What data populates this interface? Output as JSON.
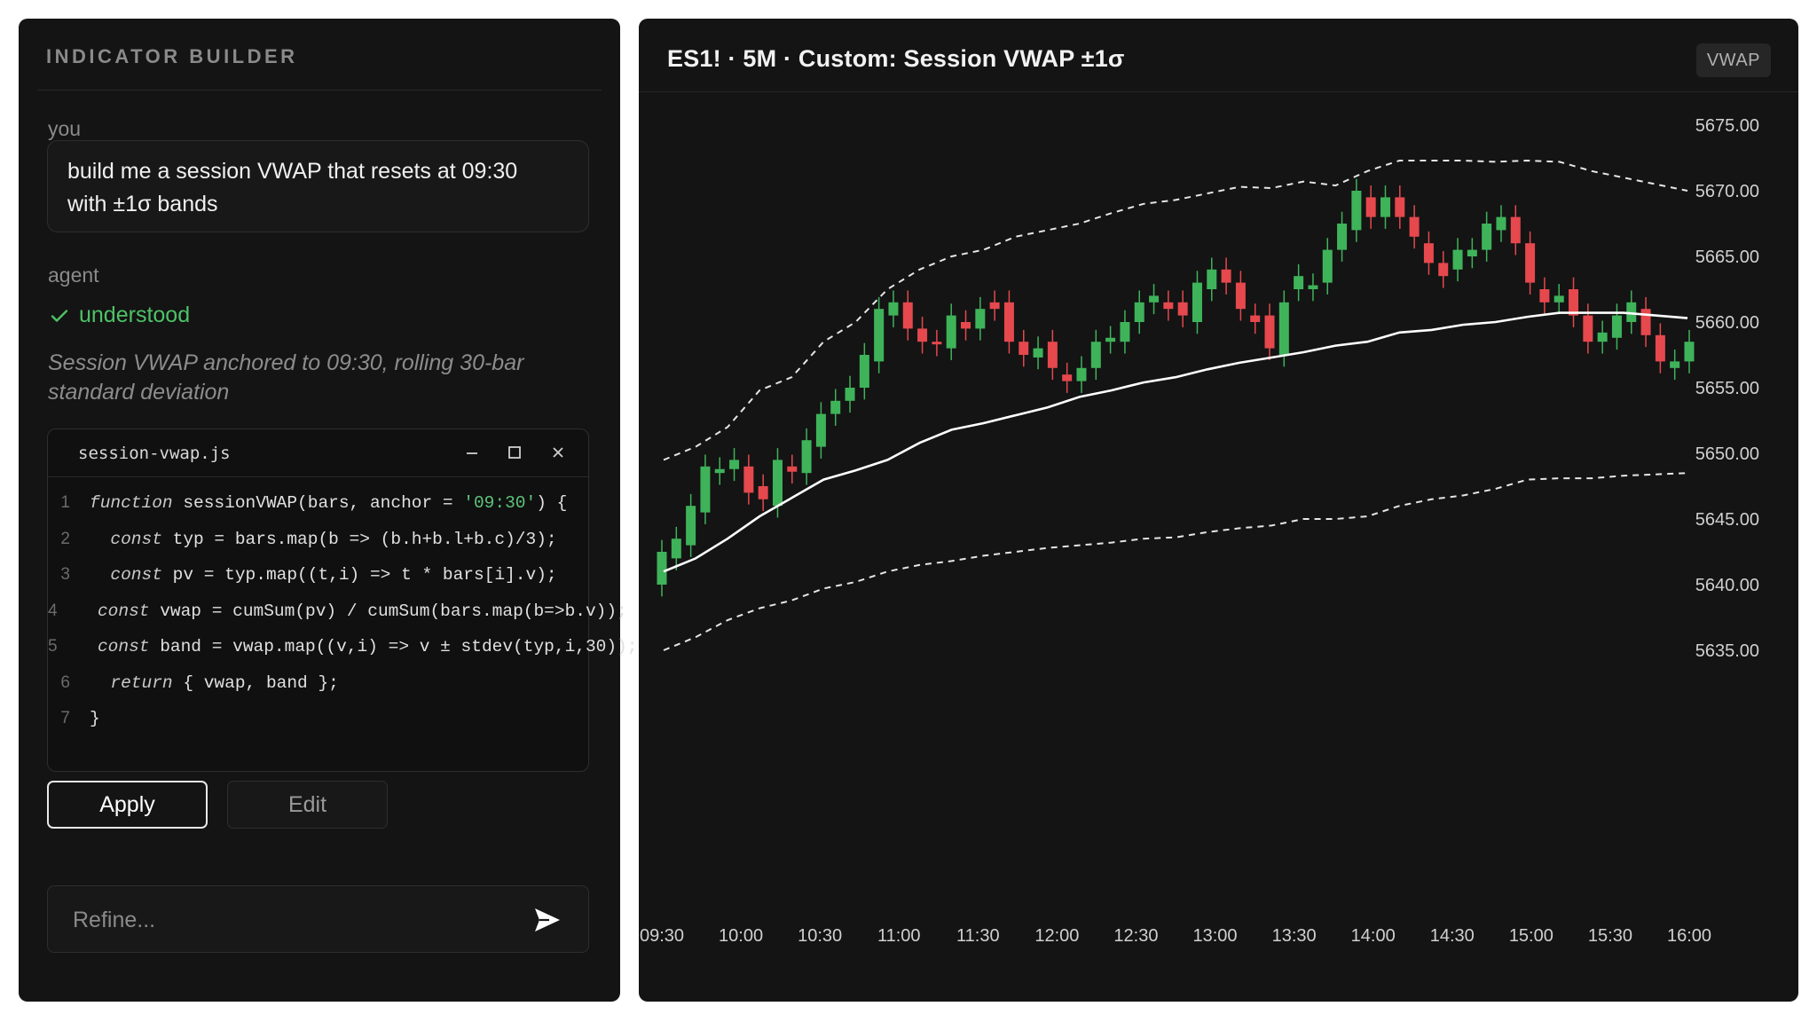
{
  "builder": {
    "title": "INDICATOR BUILDER",
    "user_role": "you",
    "user_message_line1": "build me a session VWAP that resets at 09:30",
    "user_message_line2": "with ±1σ bands",
    "agent_role": "agent",
    "status": "understood",
    "description": "Session VWAP anchored to 09:30, rolling 30-bar standard deviation",
    "code_file": "session-vwap.js",
    "code_lines": [
      {
        "n": "1",
        "parts": [
          [
            "kw",
            "function"
          ],
          [
            "t",
            " sessionVWAP(bars, anchor = "
          ],
          [
            "str",
            "'09:30'"
          ],
          [
            "t",
            ") {"
          ]
        ]
      },
      {
        "n": "2",
        "parts": [
          [
            "t",
            "  "
          ],
          [
            "kw",
            "const"
          ],
          [
            "t",
            " typ = bars.map(b => (b.h+b.l+b.c)/3);"
          ]
        ]
      },
      {
        "n": "3",
        "parts": [
          [
            "t",
            "  "
          ],
          [
            "kw",
            "const"
          ],
          [
            "t",
            " pv = typ.map((t,i) => t * bars[i].v);"
          ]
        ]
      },
      {
        "n": "4",
        "parts": [
          [
            "t",
            "  "
          ],
          [
            "kw",
            "const"
          ],
          [
            "t",
            " vwap = cumSum(pv) / cumSum(bars.map(b=>b.v));"
          ]
        ]
      },
      {
        "n": "5",
        "parts": [
          [
            "t",
            "  "
          ],
          [
            "kw",
            "const"
          ],
          [
            "t",
            " band = vwap.map((v,i) => v ± stdev(typ,i,30));"
          ]
        ]
      },
      {
        "n": "6",
        "parts": [
          [
            "t",
            "  "
          ],
          [
            "kw",
            "return"
          ],
          [
            "t",
            " { vwap, band };"
          ]
        ]
      },
      {
        "n": "7",
        "parts": [
          [
            "t",
            "}"
          ]
        ]
      }
    ],
    "apply_label": "Apply",
    "edit_label": "Edit",
    "refine_placeholder": "Refine..."
  },
  "chart_panel": {
    "title": "ES1! · 5M · Custom: Session VWAP ±1σ",
    "badge": "VWAP",
    "colors": {
      "up": "#3fb35a",
      "down": "#e5484d",
      "vwap": "#ffffff",
      "band": "#e6e6e6",
      "text": "#d0d0d0"
    }
  },
  "chart_data": {
    "type": "candlestick",
    "x_labels": [
      "09:30",
      "10:00",
      "10:30",
      "11:00",
      "11:30",
      "12:00",
      "12:30",
      "13:00",
      "13:30",
      "14:00",
      "14:30",
      "15:00",
      "15:30",
      "16:00"
    ],
    "y_ticks": [
      "5675.00",
      "5670.00",
      "5665.00",
      "5660.00",
      "5655.00",
      "5650.00",
      "5645.00",
      "5640.00",
      "5635.00"
    ],
    "ylim": [
      5635,
      5675
    ],
    "candles": [
      [
        5640.0,
        5642.5
      ],
      [
        5642.0,
        5643.5
      ],
      [
        5643.0,
        5646.0
      ],
      [
        5645.5,
        5649.0
      ],
      [
        5648.5,
        5648.8
      ],
      [
        5648.8,
        5649.5
      ],
      [
        5649.0,
        5647.0
      ],
      [
        5647.5,
        5646.5
      ],
      [
        5646.0,
        5649.5
      ],
      [
        5649.0,
        5648.6
      ],
      [
        5648.5,
        5651.0
      ],
      [
        5650.5,
        5653.0
      ],
      [
        5653.0,
        5654.0
      ],
      [
        5654.0,
        5655.0
      ],
      [
        5655.0,
        5657.5
      ],
      [
        5657.0,
        5661.0
      ],
      [
        5660.5,
        5661.5
      ],
      [
        5661.5,
        5659.5
      ],
      [
        5659.5,
        5658.5
      ],
      [
        5658.5,
        5658.3
      ],
      [
        5658.0,
        5660.5
      ],
      [
        5660.0,
        5659.5
      ],
      [
        5659.5,
        5661.0
      ],
      [
        5661.5,
        5661.0
      ],
      [
        5661.5,
        5658.5
      ],
      [
        5658.5,
        5657.5
      ],
      [
        5657.3,
        5658.0
      ],
      [
        5658.5,
        5656.5
      ],
      [
        5656.0,
        5655.5
      ],
      [
        5655.5,
        5656.5
      ],
      [
        5656.5,
        5658.5
      ],
      [
        5658.5,
        5658.8
      ],
      [
        5658.5,
        5660.0
      ],
      [
        5660.0,
        5661.5
      ],
      [
        5661.5,
        5662.0
      ],
      [
        5661.5,
        5661.0
      ],
      [
        5661.5,
        5660.5
      ],
      [
        5660.0,
        5663.0
      ],
      [
        5662.5,
        5664.0
      ],
      [
        5664.0,
        5663.0
      ],
      [
        5663.0,
        5661.0
      ],
      [
        5660.5,
        5660.0
      ],
      [
        5660.5,
        5658.0
      ],
      [
        5657.5,
        5661.5
      ],
      [
        5662.5,
        5663.5
      ],
      [
        5662.5,
        5662.8
      ],
      [
        5663.0,
        5665.5
      ],
      [
        5665.5,
        5667.5
      ],
      [
        5667.0,
        5670.0
      ],
      [
        5669.5,
        5668.0
      ],
      [
        5668.0,
        5669.5
      ],
      [
        5669.5,
        5668.0
      ],
      [
        5668.0,
        5666.5
      ],
      [
        5666.0,
        5664.5
      ],
      [
        5664.5,
        5663.5
      ],
      [
        5664.0,
        5665.5
      ],
      [
        5665.0,
        5665.5
      ],
      [
        5665.5,
        5667.5
      ],
      [
        5667.0,
        5668.0
      ],
      [
        5668.0,
        5666.0
      ],
      [
        5666.0,
        5663.0
      ],
      [
        5662.5,
        5661.5
      ],
      [
        5661.5,
        5662.0
      ],
      [
        5662.5,
        5660.5
      ],
      [
        5660.5,
        5658.5
      ],
      [
        5658.5,
        5659.2
      ],
      [
        5658.8,
        5660.5
      ],
      [
        5660.0,
        5661.5
      ],
      [
        5661.0,
        5659.0
      ],
      [
        5659.0,
        5657.0
      ],
      [
        5656.5,
        5657.0
      ],
      [
        5657.0,
        5658.5
      ]
    ],
    "vwap": [
      5641.0,
      5642.0,
      5643.5,
      5645.2,
      5646.6,
      5648.0,
      5648.7,
      5649.5,
      5650.8,
      5651.8,
      5652.3,
      5652.9,
      5653.5,
      5654.3,
      5654.8,
      5655.4,
      5655.8,
      5656.4,
      5656.9,
      5657.3,
      5657.7,
      5658.2,
      5658.5,
      5659.2,
      5659.4,
      5659.8,
      5660.0,
      5660.4,
      5660.7,
      5660.7,
      5660.7,
      5660.5,
      5660.3
    ],
    "band_upper": [
      5649.5,
      5650.5,
      5652.0,
      5654.8,
      5655.8,
      5658.5,
      5660.0,
      5662.5,
      5664.0,
      5665.0,
      5665.5,
      5666.5,
      5667.0,
      5667.5,
      5668.3,
      5669.0,
      5669.3,
      5669.8,
      5670.3,
      5670.2,
      5670.7,
      5670.4,
      5671.5,
      5672.3,
      5672.3,
      5672.3,
      5672.2,
      5672.3,
      5672.2,
      5671.5,
      5671.0,
      5670.5,
      5670.0
    ],
    "band_lower": [
      5635.0,
      5636.0,
      5637.3,
      5638.2,
      5638.8,
      5639.7,
      5640.2,
      5641.0,
      5641.5,
      5641.8,
      5642.2,
      5642.5,
      5642.8,
      5643.0,
      5643.2,
      5643.5,
      5643.6,
      5644.0,
      5644.3,
      5644.5,
      5645.0,
      5645.0,
      5645.2,
      5646.0,
      5646.5,
      5646.8,
      5647.3,
      5648.0,
      5648.1,
      5648.1,
      5648.3,
      5648.4,
      5648.5
    ]
  }
}
